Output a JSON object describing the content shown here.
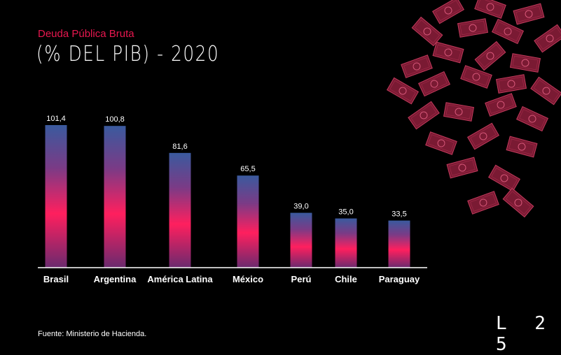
{
  "header": {
    "subtitle": "Deuda Pública Bruta",
    "title": "(% DEL PIB) - 2020"
  },
  "chart_data": {
    "type": "bar",
    "categories": [
      "Brasil",
      "Argentina",
      "América Latina",
      "México",
      "Perú",
      "Chile",
      "Paraguay"
    ],
    "values": [
      101.4,
      100.8,
      81.6,
      65.5,
      39.0,
      35.0,
      33.5
    ],
    "value_labels": [
      "101,4",
      "100,8",
      "81,6",
      "65,5",
      "39,0",
      "35,0",
      "33,5"
    ],
    "title": "(% DEL PIB) - 2020",
    "subtitle": "Deuda Pública Bruta",
    "ylim": [
      0,
      101.4
    ],
    "grid": false,
    "colors": {
      "top": "#3a5a9e",
      "mid": "#ff1f5e",
      "bottom": "#6a2a6e"
    }
  },
  "footer": {
    "source": "Fuente: Ministerio de Hacienda.",
    "logo": "L 2 5"
  },
  "decoration": {
    "icon": "banknotes-illustration",
    "color": "#7a1a33"
  }
}
